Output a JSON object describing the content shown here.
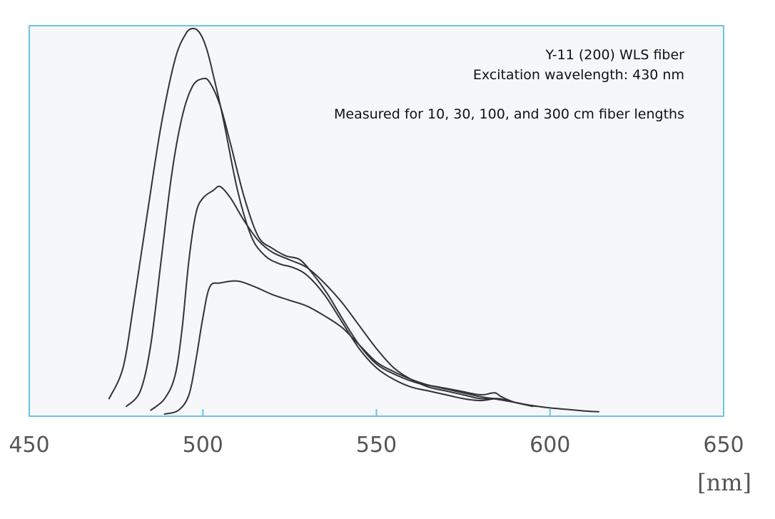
{
  "chart_data": {
    "type": "line",
    "title": "",
    "xlabel": "[nm]",
    "ylabel": "",
    "xlim": [
      450,
      650
    ],
    "ylim": [
      0,
      1
    ],
    "xticks": [
      450,
      500,
      550,
      600,
      650
    ],
    "grid": false,
    "colors": {
      "frame": "#6cc4e3",
      "plot_bg": "#f5f7f9",
      "line": "#333333",
      "tick_text": "#555555"
    },
    "annotations": [
      "Y-11 (200) WLS fiber",
      "Excitation wavelength: 430 nm",
      "Measured for 10, 30, 100, and 300 cm fiber lengths"
    ],
    "series": [
      {
        "x": [
          473,
          477,
          480,
          484,
          488,
          492,
          495,
          497,
          499,
          501,
          503,
          506,
          510,
          514,
          518,
          522,
          526,
          530,
          535,
          540,
          545,
          550,
          555,
          560,
          565,
          570,
          575,
          580,
          585,
          590,
          595
        ],
        "y": [
          0.04,
          0.12,
          0.28,
          0.52,
          0.75,
          0.92,
          0.985,
          1.0,
          0.99,
          0.95,
          0.88,
          0.76,
          0.58,
          0.46,
          0.41,
          0.39,
          0.38,
          0.36,
          0.31,
          0.24,
          0.17,
          0.12,
          0.09,
          0.07,
          0.06,
          0.05,
          0.04,
          0.035,
          0.04,
          0.03,
          0.02
        ]
      },
      {
        "x": [
          478,
          482,
          485,
          488,
          491,
          494,
          497,
          500,
          502,
          505,
          508,
          512,
          516,
          520,
          524,
          528,
          532,
          536,
          540,
          545,
          550,
          556,
          562,
          568,
          574,
          580,
          584,
          586,
          590,
          596
        ],
        "y": [
          0.02,
          0.06,
          0.18,
          0.4,
          0.62,
          0.77,
          0.85,
          0.87,
          0.86,
          0.8,
          0.7,
          0.56,
          0.46,
          0.43,
          0.41,
          0.4,
          0.36,
          0.31,
          0.25,
          0.18,
          0.13,
          0.1,
          0.08,
          0.07,
          0.06,
          0.05,
          0.055,
          0.045,
          0.03,
          0.02
        ]
      },
      {
        "x": [
          485,
          489,
          492,
          494,
          496,
          498,
          500,
          503,
          505,
          508,
          512,
          516,
          520,
          525,
          530,
          535,
          540,
          545,
          550,
          555,
          560,
          565,
          570,
          575,
          580,
          585,
          590,
          595
        ],
        "y": [
          0.01,
          0.04,
          0.1,
          0.22,
          0.4,
          0.52,
          0.56,
          0.58,
          0.59,
          0.56,
          0.5,
          0.45,
          0.42,
          0.4,
          0.38,
          0.34,
          0.29,
          0.23,
          0.17,
          0.12,
          0.09,
          0.07,
          0.06,
          0.05,
          0.04,
          0.04,
          0.03,
          0.02
        ]
      },
      {
        "x": [
          489,
          493,
          496,
          498,
          500,
          502,
          505,
          510,
          515,
          520,
          525,
          530,
          535,
          540,
          545,
          550,
          555,
          560,
          565,
          570,
          575,
          580,
          585,
          590,
          595,
          600,
          605,
          610,
          614
        ],
        "y": [
          0.0,
          0.01,
          0.05,
          0.14,
          0.25,
          0.33,
          0.34,
          0.345,
          0.33,
          0.31,
          0.295,
          0.28,
          0.255,
          0.225,
          0.18,
          0.135,
          0.11,
          0.09,
          0.075,
          0.065,
          0.055,
          0.045,
          0.038,
          0.03,
          0.022,
          0.016,
          0.012,
          0.008,
          0.006
        ]
      }
    ]
  }
}
